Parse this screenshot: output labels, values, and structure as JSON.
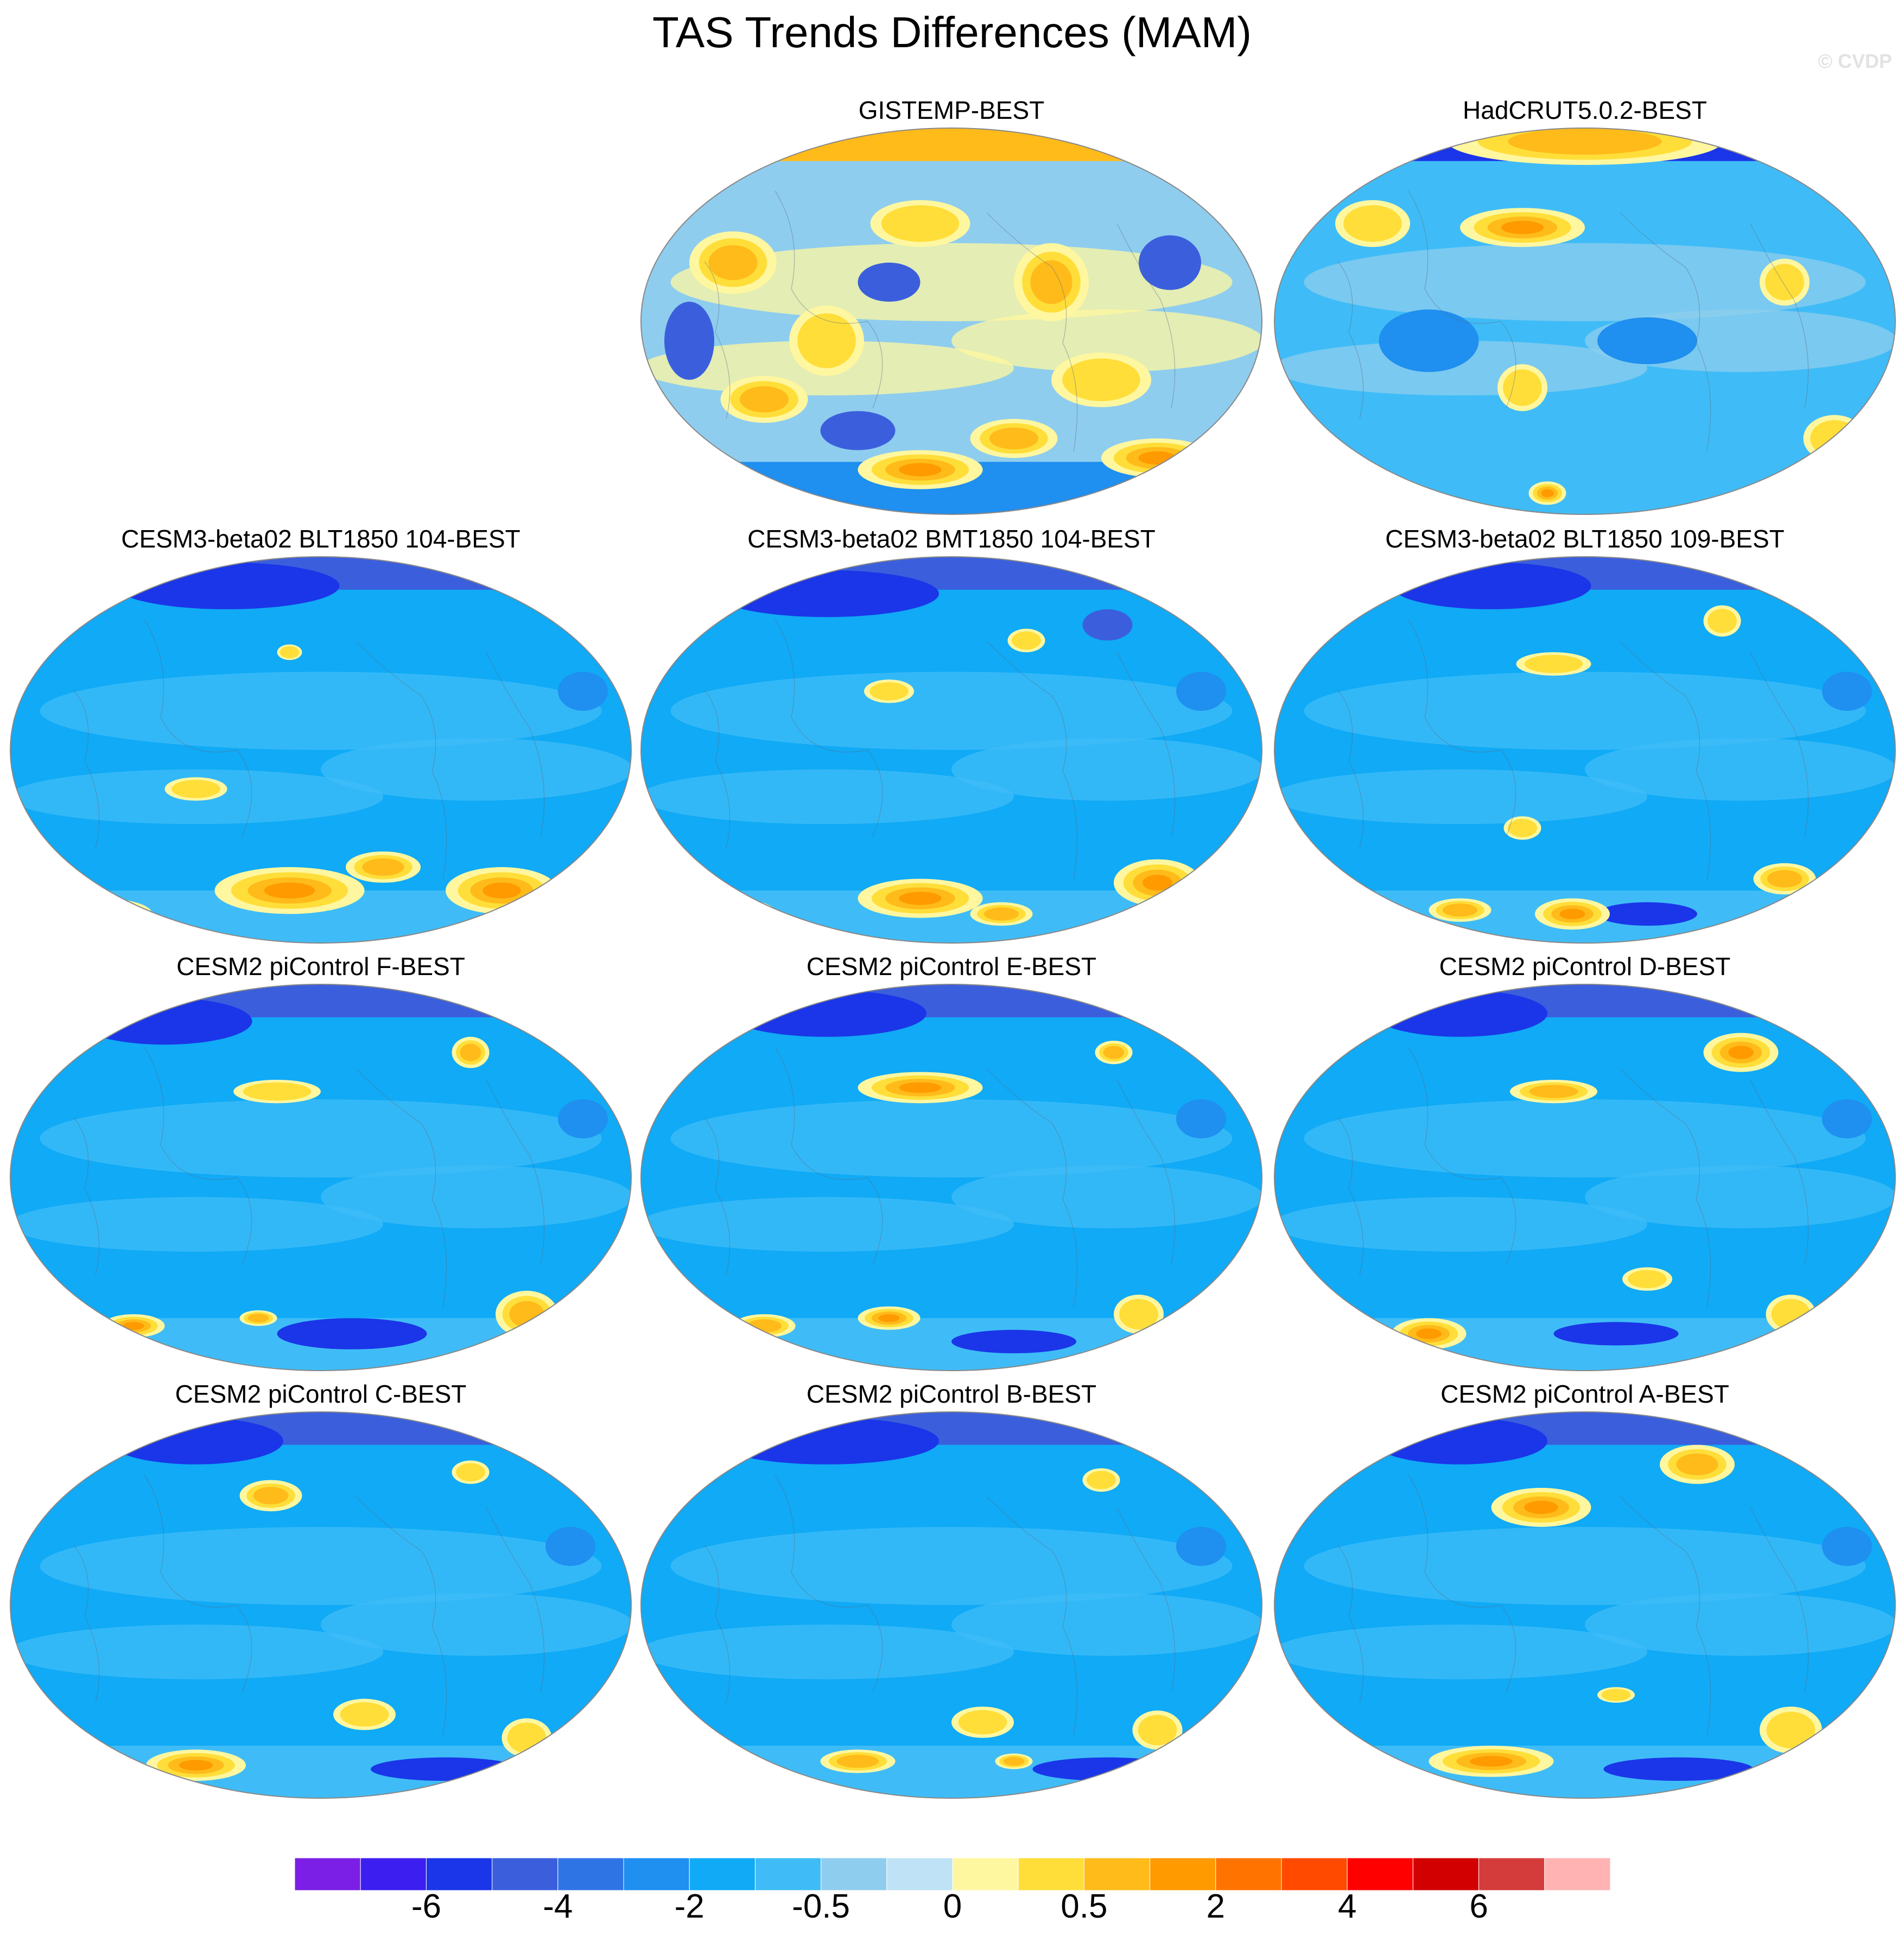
{
  "title": "TAS Trends Differences (MAM)",
  "watermark": "© CVDP",
  "palette": [
    "#7b1fe6",
    "#3d1ef0",
    "#1a36e8",
    "#3b5fdc",
    "#2f74e4",
    "#1f8ff0",
    "#10aaf6",
    "#3fbcf7",
    "#8fcdee",
    "#bfe2f6",
    "#fff7a0",
    "#ffde3a",
    "#ffbb1a",
    "#ff9a00",
    "#ff7400",
    "#ff4a00",
    "#ff0000",
    "#d20000",
    "#d43b3b",
    "#ffb3b3"
  ],
  "panels": [
    {
      "id": "gistemp",
      "title": "GISTEMP-BEST",
      "bg": 3,
      "hot": [
        [
          0.15,
          0.35,
          0.07,
          0.08,
          2
        ],
        [
          0.3,
          0.55,
          0.06,
          0.09,
          1
        ],
        [
          0.45,
          0.25,
          0.08,
          0.06,
          1
        ],
        [
          0.66,
          0.4,
          0.06,
          0.1,
          2
        ],
        [
          0.74,
          0.65,
          0.08,
          0.07,
          1
        ],
        [
          0.2,
          0.7,
          0.07,
          0.06,
          2
        ],
        [
          0.83,
          0.85,
          0.09,
          0.05,
          3
        ],
        [
          0.45,
          0.88,
          0.1,
          0.05,
          4
        ],
        [
          0.6,
          0.8,
          0.07,
          0.05,
          2
        ]
      ],
      "cold": [
        [
          0.35,
          0.78,
          0.06,
          0.05,
          4
        ],
        [
          0.85,
          0.35,
          0.05,
          0.07,
          4
        ],
        [
          0.4,
          0.4,
          0.05,
          0.05,
          4
        ],
        [
          0.08,
          0.55,
          0.04,
          0.1,
          4
        ]
      ]
    },
    {
      "id": "hadcrut",
      "title": "HadCRUT5.0.2-BEST",
      "bg": 1,
      "hot": [
        [
          0.4,
          0.26,
          0.1,
          0.05,
          3
        ],
        [
          0.5,
          0.04,
          0.22,
          0.06,
          2
        ],
        [
          0.16,
          0.25,
          0.06,
          0.06,
          1
        ],
        [
          0.4,
          0.67,
          0.04,
          0.06,
          1
        ],
        [
          0.44,
          0.94,
          0.03,
          0.03,
          5
        ],
        [
          0.82,
          0.4,
          0.04,
          0.06,
          1
        ],
        [
          0.9,
          0.8,
          0.05,
          0.06,
          1
        ]
      ],
      "cold": [
        [
          0.25,
          0.55,
          0.08,
          0.08,
          3
        ],
        [
          0.6,
          0.55,
          0.08,
          0.06,
          3
        ]
      ]
    },
    {
      "id": "cesm3_104_blt",
      "title": "CESM3-beta02 BLT1850 104-BEST",
      "bg": 0,
      "hot": [
        [
          0.45,
          0.86,
          0.12,
          0.06,
          4
        ],
        [
          0.79,
          0.86,
          0.09,
          0.06,
          3
        ],
        [
          0.6,
          0.8,
          0.06,
          0.04,
          2
        ],
        [
          0.15,
          0.92,
          0.08,
          0.04,
          2
        ],
        [
          0.3,
          0.6,
          0.05,
          0.03,
          1
        ],
        [
          0.45,
          0.25,
          0.02,
          0.02,
          1
        ]
      ],
      "cold": [
        [
          0.35,
          0.08,
          0.18,
          0.06,
          5
        ],
        [
          0.92,
          0.35,
          0.04,
          0.05,
          3
        ]
      ]
    },
    {
      "id": "cesm3_104_bmt",
      "title": "CESM3-beta02 BMT1850 104-BEST",
      "bg": 0,
      "hot": [
        [
          0.45,
          0.88,
          0.1,
          0.05,
          4
        ],
        [
          0.83,
          0.84,
          0.07,
          0.06,
          3
        ],
        [
          0.58,
          0.92,
          0.05,
          0.03,
          2
        ],
        [
          0.15,
          0.92,
          0.07,
          0.04,
          2
        ],
        [
          0.4,
          0.35,
          0.04,
          0.03,
          1
        ],
        [
          0.62,
          0.22,
          0.03,
          0.03,
          1
        ]
      ],
      "cold": [
        [
          0.3,
          0.1,
          0.18,
          0.06,
          5
        ],
        [
          0.75,
          0.18,
          0.04,
          0.04,
          4
        ],
        [
          0.9,
          0.35,
          0.04,
          0.05,
          3
        ]
      ]
    },
    {
      "id": "cesm3_109_blt",
      "title": "CESM3-beta02 BLT1850 109-BEST",
      "bg": 0,
      "hot": [
        [
          0.45,
          0.28,
          0.06,
          0.03,
          1
        ],
        [
          0.4,
          0.7,
          0.03,
          0.03,
          1
        ],
        [
          0.48,
          0.92,
          0.06,
          0.04,
          4
        ],
        [
          0.82,
          0.83,
          0.05,
          0.04,
          2
        ],
        [
          0.72,
          0.17,
          0.03,
          0.04,
          1
        ],
        [
          0.3,
          0.91,
          0.05,
          0.03,
          2
        ]
      ],
      "cold": [
        [
          0.35,
          0.08,
          0.16,
          0.06,
          5
        ],
        [
          0.6,
          0.92,
          0.08,
          0.03,
          5
        ],
        [
          0.92,
          0.35,
          0.04,
          0.05,
          3
        ]
      ]
    },
    {
      "id": "pic_f",
      "title": "CESM2 piControl F-BEST",
      "bg": 0,
      "hot": [
        [
          0.74,
          0.18,
          0.03,
          0.04,
          2
        ],
        [
          0.43,
          0.28,
          0.07,
          0.03,
          1
        ],
        [
          0.83,
          0.85,
          0.05,
          0.06,
          2
        ],
        [
          0.2,
          0.88,
          0.05,
          0.03,
          3
        ],
        [
          0.4,
          0.86,
          0.03,
          0.02,
          2
        ]
      ],
      "cold": [
        [
          0.25,
          0.1,
          0.14,
          0.06,
          5
        ],
        [
          0.55,
          0.9,
          0.12,
          0.04,
          5
        ],
        [
          0.92,
          0.35,
          0.04,
          0.05,
          3
        ]
      ]
    },
    {
      "id": "pic_e",
      "title": "CESM2 piControl E-BEST",
      "bg": 0,
      "hot": [
        [
          0.45,
          0.27,
          0.1,
          0.04,
          3
        ],
        [
          0.76,
          0.18,
          0.03,
          0.03,
          2
        ],
        [
          0.2,
          0.88,
          0.05,
          0.03,
          2
        ],
        [
          0.4,
          0.86,
          0.05,
          0.03,
          4
        ],
        [
          0.8,
          0.85,
          0.04,
          0.05,
          1
        ]
      ],
      "cold": [
        [
          0.3,
          0.08,
          0.16,
          0.06,
          5
        ],
        [
          0.6,
          0.92,
          0.1,
          0.03,
          5
        ],
        [
          0.9,
          0.35,
          0.04,
          0.05,
          3
        ]
      ]
    },
    {
      "id": "pic_d",
      "title": "CESM2 piControl D-BEST",
      "bg": 0,
      "hot": [
        [
          0.75,
          0.18,
          0.06,
          0.05,
          3
        ],
        [
          0.45,
          0.28,
          0.07,
          0.03,
          2
        ],
        [
          0.83,
          0.85,
          0.04,
          0.05,
          1
        ],
        [
          0.25,
          0.9,
          0.06,
          0.04,
          3
        ],
        [
          0.6,
          0.76,
          0.04,
          0.03,
          1
        ]
      ],
      "cold": [
        [
          0.3,
          0.08,
          0.14,
          0.06,
          5
        ],
        [
          0.55,
          0.9,
          0.1,
          0.03,
          5
        ],
        [
          0.92,
          0.35,
          0.04,
          0.05,
          3
        ]
      ]
    },
    {
      "id": "pic_c",
      "title": "CESM2 piControl C-BEST",
      "bg": 0,
      "hot": [
        [
          0.42,
          0.22,
          0.05,
          0.04,
          2
        ],
        [
          0.74,
          0.16,
          0.03,
          0.03,
          1
        ],
        [
          0.57,
          0.78,
          0.05,
          0.04,
          1
        ],
        [
          0.83,
          0.84,
          0.04,
          0.05,
          1
        ],
        [
          0.3,
          0.91,
          0.08,
          0.04,
          3
        ]
      ],
      "cold": [
        [
          0.3,
          0.08,
          0.14,
          0.06,
          5
        ],
        [
          0.7,
          0.92,
          0.12,
          0.03,
          5
        ],
        [
          0.9,
          0.35,
          0.04,
          0.05,
          3
        ]
      ]
    },
    {
      "id": "pic_b",
      "title": "CESM2 piControl B-BEST",
      "bg": 0,
      "hot": [
        [
          0.74,
          0.18,
          0.03,
          0.03,
          1
        ],
        [
          0.55,
          0.8,
          0.05,
          0.04,
          1
        ],
        [
          0.83,
          0.82,
          0.04,
          0.05,
          1
        ],
        [
          0.35,
          0.9,
          0.06,
          0.03,
          2
        ],
        [
          0.6,
          0.9,
          0.03,
          0.02,
          2
        ]
      ],
      "cold": [
        [
          0.3,
          0.08,
          0.18,
          0.06,
          5
        ],
        [
          0.75,
          0.92,
          0.12,
          0.03,
          5
        ],
        [
          0.9,
          0.35,
          0.04,
          0.05,
          3
        ]
      ]
    },
    {
      "id": "pic_a",
      "title": "CESM2 piControl A-BEST",
      "bg": 0,
      "hot": [
        [
          0.43,
          0.25,
          0.08,
          0.05,
          3
        ],
        [
          0.68,
          0.14,
          0.06,
          0.05,
          2
        ],
        [
          0.83,
          0.82,
          0.05,
          0.06,
          1
        ],
        [
          0.35,
          0.9,
          0.1,
          0.04,
          3
        ],
        [
          0.55,
          0.73,
          0.03,
          0.02,
          1
        ]
      ],
      "cold": [
        [
          0.3,
          0.08,
          0.14,
          0.06,
          5
        ],
        [
          0.65,
          0.92,
          0.12,
          0.03,
          5
        ],
        [
          0.92,
          0.35,
          0.04,
          0.05,
          3
        ]
      ]
    }
  ],
  "colorbar": {
    "labels": [
      "-6",
      "-4",
      "-2",
      "-0.5",
      "0",
      "0.5",
      "2",
      "4",
      "6"
    ],
    "label_after_box": [
      2,
      4,
      6,
      8,
      10,
      12,
      14,
      16,
      18
    ]
  }
}
